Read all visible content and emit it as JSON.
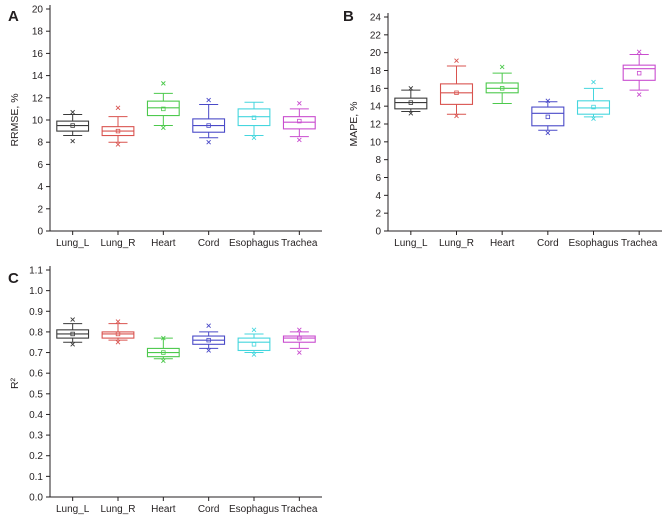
{
  "chart_data": [
    {
      "panel": "A",
      "type": "box",
      "ylabel": "RRMSE, %",
      "xlabel": "",
      "ylim": [
        0,
        20
      ],
      "yticks": [
        "0",
        "2",
        "4",
        "6",
        "8",
        "10",
        "12",
        "14",
        "16",
        "18",
        "20"
      ],
      "categories": [
        "Lung_L",
        "Lung_R",
        "Heart",
        "Cord",
        "Esophagus",
        "Trachea"
      ],
      "colors": [
        "#3a3a3a",
        "#d9534f",
        "#4cc94c",
        "#4a4ac8",
        "#45d6de",
        "#c94ccf"
      ],
      "series": [
        {
          "name": "Lung_L",
          "min": 8.6,
          "q1": 9.0,
          "median": 9.5,
          "q3": 9.9,
          "max": 10.5,
          "mean": 9.5,
          "outliers": [
            8.1,
            10.7
          ]
        },
        {
          "name": "Lung_R",
          "min": 8.0,
          "q1": 8.6,
          "median": 9.0,
          "q3": 9.4,
          "max": 10.3,
          "mean": 9.0,
          "outliers": [
            7.8,
            11.1
          ]
        },
        {
          "name": "Heart",
          "min": 9.5,
          "q1": 10.4,
          "median": 11.1,
          "q3": 11.7,
          "max": 12.4,
          "mean": 11.0,
          "outliers": [
            9.3,
            13.3
          ]
        },
        {
          "name": "Cord",
          "min": 8.4,
          "q1": 8.9,
          "median": 9.5,
          "q3": 10.1,
          "max": 11.4,
          "mean": 9.5,
          "outliers": [
            8.0,
            11.8
          ]
        },
        {
          "name": "Esophagus",
          "min": 8.6,
          "q1": 9.5,
          "median": 10.3,
          "q3": 11.0,
          "max": 11.6,
          "mean": 10.2,
          "outliers": [
            8.4
          ]
        },
        {
          "name": "Trachea",
          "min": 8.5,
          "q1": 9.2,
          "median": 9.8,
          "q3": 10.3,
          "max": 11.0,
          "mean": 9.9,
          "outliers": [
            8.2,
            11.5
          ]
        }
      ]
    },
    {
      "panel": "B",
      "type": "box",
      "ylabel": "MAPE, %",
      "xlabel": "",
      "ylim": [
        0,
        24
      ],
      "yticks": [
        "0",
        "2",
        "4",
        "6",
        "8",
        "10",
        "12",
        "14",
        "16",
        "18",
        "20",
        "22",
        "24"
      ],
      "categories": [
        "Lung_L",
        "Lung_R",
        "Heart",
        "Cord",
        "Esophagus",
        "Trachea"
      ],
      "colors": [
        "#3a3a3a",
        "#d9534f",
        "#4cc94c",
        "#4a4ac8",
        "#45d6de",
        "#c94ccf"
      ],
      "series": [
        {
          "name": "Lung_L",
          "min": 13.4,
          "q1": 13.7,
          "median": 14.4,
          "q3": 14.9,
          "max": 15.8,
          "mean": 14.4,
          "outliers": [
            13.2,
            16.0
          ]
        },
        {
          "name": "Lung_R",
          "min": 13.1,
          "q1": 14.2,
          "median": 15.5,
          "q3": 16.5,
          "max": 18.5,
          "mean": 15.5,
          "outliers": [
            12.9,
            19.1
          ]
        },
        {
          "name": "Heart",
          "min": 14.3,
          "q1": 15.5,
          "median": 16.0,
          "q3": 16.6,
          "max": 17.7,
          "mean": 16.0,
          "outliers": [
            18.4
          ]
        },
        {
          "name": "Cord",
          "min": 11.3,
          "q1": 11.8,
          "median": 13.2,
          "q3": 13.9,
          "max": 14.5,
          "mean": 12.8,
          "outliers": [
            11.0,
            14.6
          ]
        },
        {
          "name": "Esophagus",
          "min": 12.8,
          "q1": 13.1,
          "median": 13.8,
          "q3": 14.6,
          "max": 16.0,
          "mean": 13.9,
          "outliers": [
            12.6,
            16.7
          ]
        },
        {
          "name": "Trachea",
          "min": 15.8,
          "q1": 16.9,
          "median": 18.2,
          "q3": 18.6,
          "max": 19.8,
          "mean": 17.7,
          "outliers": [
            15.3,
            20.1
          ]
        }
      ]
    },
    {
      "panel": "C",
      "type": "box",
      "ylabel": "R²",
      "xlabel": "",
      "ylim": [
        0,
        1.1
      ],
      "yticks": [
        "0.0",
        "0.1",
        "0.2",
        "0.3",
        "0.4",
        "0.5",
        "0.6",
        "0.7",
        "0.8",
        "0.9",
        "1.0",
        "1.1"
      ],
      "categories": [
        "Lung_L",
        "Lung_R",
        "Heart",
        "Cord",
        "Esophagus",
        "Trachea"
      ],
      "colors": [
        "#3a3a3a",
        "#d9534f",
        "#4cc94c",
        "#4a4ac8",
        "#45d6de",
        "#c94ccf"
      ],
      "series": [
        {
          "name": "Lung_L",
          "min": 0.75,
          "q1": 0.77,
          "median": 0.79,
          "q3": 0.81,
          "max": 0.84,
          "mean": 0.79,
          "outliers": [
            0.74,
            0.86
          ]
        },
        {
          "name": "Lung_R",
          "min": 0.76,
          "q1": 0.77,
          "median": 0.79,
          "q3": 0.8,
          "max": 0.84,
          "mean": 0.79,
          "outliers": [
            0.75,
            0.85
          ]
        },
        {
          "name": "Heart",
          "min": 0.67,
          "q1": 0.68,
          "median": 0.7,
          "q3": 0.72,
          "max": 0.77,
          "mean": 0.7,
          "outliers": [
            0.66,
            0.77
          ]
        },
        {
          "name": "Cord",
          "min": 0.72,
          "q1": 0.74,
          "median": 0.76,
          "q3": 0.78,
          "max": 0.8,
          "mean": 0.76,
          "outliers": [
            0.71,
            0.83
          ]
        },
        {
          "name": "Esophagus",
          "min": 0.7,
          "q1": 0.71,
          "median": 0.75,
          "q3": 0.77,
          "max": 0.79,
          "mean": 0.74,
          "outliers": [
            0.69,
            0.81
          ]
        },
        {
          "name": "Trachea",
          "min": 0.72,
          "q1": 0.75,
          "median": 0.77,
          "q3": 0.78,
          "max": 0.8,
          "mean": 0.77,
          "outliers": [
            0.7,
            0.81
          ]
        }
      ]
    }
  ]
}
